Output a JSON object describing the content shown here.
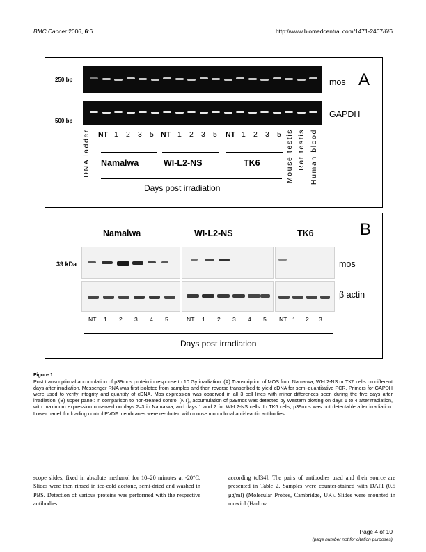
{
  "header": {
    "journal": "BMC Cancer",
    "year_vol": "2006,",
    "volume": "6",
    "article": ":6",
    "url": "http://www.biomedcentral.com/1471-2407/6/6"
  },
  "figure": {
    "panel_a": {
      "letter": "A",
      "marker_top": "250 bp",
      "marker_bottom": "500 bp",
      "row_labels": [
        "mos",
        "GAPDH"
      ],
      "lanes": [
        "NT",
        "1",
        "2",
        "3",
        "5",
        "NT",
        "1",
        "2",
        "3",
        "5",
        "NT",
        "1",
        "2",
        "3",
        "5"
      ],
      "vertical_labels": [
        "DNA ladder",
        "Mouse testis",
        "Rat testis",
        "Human blood"
      ],
      "groups": [
        "Namalwa",
        "WI-L2-NS",
        "TK6"
      ],
      "axis_label": "Days post irradiation"
    },
    "panel_b": {
      "letter": "B",
      "groups": [
        "Namalwa",
        "WI-L2-NS",
        "TK6"
      ],
      "marker": "39 kDa",
      "row_labels": [
        "mos",
        "β actin"
      ],
      "lanes_namalwa": [
        "NT",
        "1",
        "2",
        "3",
        "4",
        "5"
      ],
      "lanes_wil2": [
        "NT",
        "1",
        "2",
        "3",
        "4",
        "5"
      ],
      "lanes_tk6": [
        "NT",
        "1",
        "2",
        "3"
      ],
      "axis_label": "Days post irradiation"
    }
  },
  "caption": {
    "title": "Figure 1",
    "text": "Post transcriptional accumulation of p39mos protein in response to 10 Gy irradiation. (A) Transcription of MOS from Namalwa, WI-L2-NS or TK6 cells on different days after irradiation. Messenger RNA was first isolated from samples and then reverse transcribed to yield cDNA for semi-quantitative PCR. Primers for GAPDH were used to verify integrity and quantity of cDNA. Mos expression was observed in all 3 cell lines with minor differences seen during the five days after irradiation; (B) upper panel: in comparison to non-treated control (NT), accumulation of p39mos was detected by Western blotting on days 1 to 4 afterirradiation, with maximum expression observed on days 2–3 in Namalwa, and days 1 and 2 for WI-L2-NS cells. In TK6 cells, p39mos was not detectable after irradiation. Lower panel: for loading control PVDF membranes were re-blotted with mouse monoclonal anti-b-actin antibodies."
  },
  "body": {
    "left": "scope slides, fixed in absolute methanol for 10–20 minutes at -20°C. Slides were then rinsed in ice-cold acetone, semi-dried and washed in PBS. Detection of various proteins was performed with the respective antibodies",
    "right": "according to[34]. The pairs of antibodies used and their source are presented in Table 2. Samples were counter-stained with DAPI (0.5 μg/ml) (Molecular Probes, Cambridge, UK). Slides were mounted in mowiol (Harlow"
  },
  "footer": {
    "page": "Page 4 of 10",
    "note": "(page number not for citation purposes)"
  }
}
